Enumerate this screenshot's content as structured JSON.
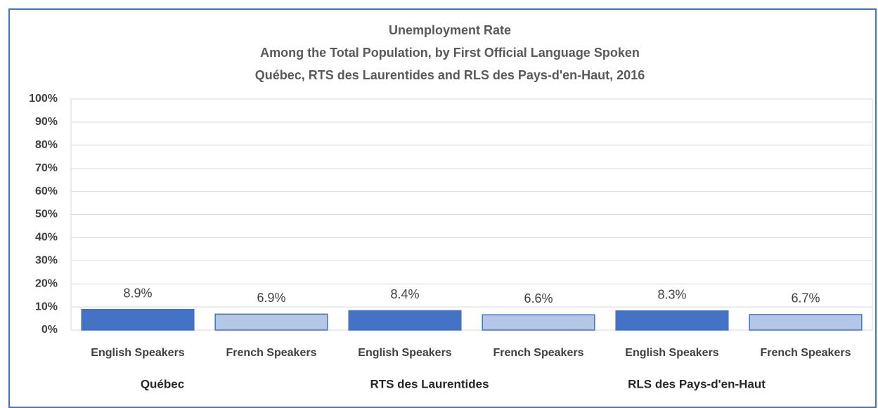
{
  "chart_data": {
    "type": "bar",
    "title": [
      "Unemployment Rate",
      "Among the Total Population, by First Official Language Spoken",
      "Québec, RTS des Laurentides and RLS des Pays-d'en-Haut, 2016"
    ],
    "categories": [
      "English Speakers",
      "French Speakers",
      "English Speakers",
      "French Speakers",
      "English Speakers",
      "French Speakers"
    ],
    "groups": [
      "Québec",
      "RTS des Laurentides",
      "RLS des Pays-d'en-Haut"
    ],
    "values": [
      8.9,
      6.9,
      8.4,
      6.6,
      8.3,
      6.7
    ],
    "value_labels": [
      "8.9%",
      "6.9%",
      "8.4%",
      "6.6%",
      "8.3%",
      "6.7%"
    ],
    "colors": [
      "#4472c4",
      "#b4c7e7",
      "#4472c4",
      "#b4c7e7",
      "#4472c4",
      "#b4c7e7"
    ],
    "ylim": [
      0,
      100
    ],
    "yticks": [
      {
        "value": 0,
        "label": "0%"
      },
      {
        "value": 10,
        "label": "10%"
      },
      {
        "value": 20,
        "label": "20%"
      },
      {
        "value": 30,
        "label": "30%"
      },
      {
        "value": 40,
        "label": "40%"
      },
      {
        "value": 50,
        "label": "50%"
      },
      {
        "value": 60,
        "label": "60%"
      },
      {
        "value": 70,
        "label": "70%"
      },
      {
        "value": 80,
        "label": "80%"
      },
      {
        "value": 90,
        "label": "90%"
      },
      {
        "value": 100,
        "label": "100%"
      }
    ],
    "grid": true
  }
}
